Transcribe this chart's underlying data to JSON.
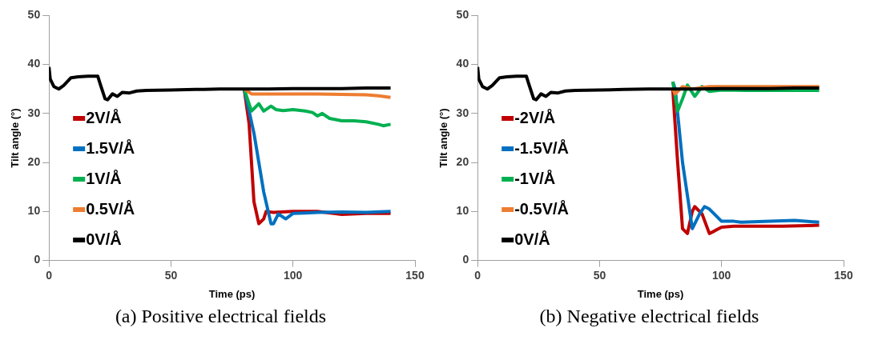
{
  "chart_data": [
    {
      "type": "line",
      "xlabel": "Time (ps)",
      "ylabel": "Tilt angle (°)",
      "annotations": [
        "(a) Positive electrical fields"
      ],
      "xlim": [
        0,
        150
      ],
      "xticks": [
        0,
        50,
        100,
        150
      ],
      "ylim": [
        0,
        50
      ],
      "yticks": [
        0,
        10,
        20,
        30,
        40,
        50
      ],
      "grid": false,
      "legend": "left",
      "series": [
        {
          "name": "2V/Å",
          "color": "#c00000",
          "x": [
            80,
            82,
            84,
            86,
            88,
            89,
            92,
            95,
            100,
            110,
            120,
            130,
            140
          ],
          "values": [
            35,
            28,
            12,
            7.5,
            8.5,
            10,
            9.8,
            9.9,
            10,
            10,
            9.4,
            9.6,
            9.6
          ]
        },
        {
          "name": "1.5V/Å",
          "color": "#0070c0",
          "x": [
            80,
            84,
            88,
            91,
            92,
            94,
            97,
            100,
            105,
            110,
            120,
            130,
            140
          ],
          "values": [
            35,
            26,
            14,
            7.5,
            7.5,
            9.5,
            8.5,
            9.6,
            9.7,
            9.8,
            9.9,
            9.8,
            10
          ]
        },
        {
          "name": "1V/Å",
          "color": "#00b050",
          "x": [
            80,
            83,
            86,
            88,
            91,
            93,
            96,
            100,
            105,
            108,
            110,
            112,
            115,
            120,
            125,
            130,
            135,
            137,
            140
          ],
          "values": [
            35,
            30.5,
            32,
            30.5,
            31.5,
            30.8,
            30.6,
            30.8,
            30.5,
            30.2,
            29.5,
            30,
            29,
            28.5,
            28.5,
            28.3,
            27.8,
            27.5,
            27.8
          ]
        },
        {
          "name": "0.5V/Å",
          "color": "#ed7d31",
          "x": [
            80,
            83,
            90,
            100,
            110,
            120,
            130,
            135,
            140
          ],
          "values": [
            35,
            34,
            34,
            34,
            34,
            33.9,
            33.8,
            33.6,
            33.3
          ]
        },
        {
          "name": "0V/Å",
          "color": "#000000",
          "x": [
            0,
            0.5,
            2,
            4,
            6,
            9,
            12,
            16,
            20,
            21,
            23,
            24,
            26,
            28,
            30,
            33,
            36,
            40,
            50,
            60,
            70,
            80,
            90,
            100,
            110,
            120,
            130,
            140
          ],
          "values": [
            39.5,
            37,
            35.5,
            35,
            35.7,
            37.3,
            37.5,
            37.6,
            37.6,
            36,
            33,
            32.8,
            34,
            33.5,
            34.3,
            34.2,
            34.6,
            34.7,
            34.8,
            34.9,
            35,
            35,
            35,
            35.1,
            35.1,
            35.1,
            35.2,
            35.2
          ]
        }
      ]
    },
    {
      "type": "line",
      "xlabel": "Time (ps)",
      "ylabel": "Tilt angle (°)",
      "annotations": [
        "(b) Negative electrical fields"
      ],
      "xlim": [
        0,
        150
      ],
      "xticks": [
        0,
        50,
        100,
        150
      ],
      "ylim": [
        0,
        50
      ],
      "yticks": [
        0,
        10,
        20,
        30,
        40,
        50
      ],
      "grid": false,
      "legend": "left",
      "series": [
        {
          "name": "-2V/Å",
          "color": "#c00000",
          "x": [
            80,
            82,
            84,
            86,
            88,
            89,
            92,
            95,
            97,
            100,
            105,
            115,
            125,
            140
          ],
          "values": [
            35,
            20,
            6.5,
            5.5,
            10,
            11,
            9.5,
            5.5,
            6,
            6.8,
            7,
            7,
            7,
            7.2
          ]
        },
        {
          "name": "-1.5V/Å",
          "color": "#0070c0",
          "x": [
            80,
            81,
            84,
            88,
            91,
            93,
            95,
            97,
            100,
            105,
            108,
            120,
            130,
            140
          ],
          "values": [
            36.5,
            35,
            20,
            6.5,
            9.5,
            11,
            10.5,
            9.5,
            8,
            8,
            7.8,
            8,
            8.2,
            7.8
          ]
        },
        {
          "name": "-1V/Å",
          "color": "#00b050",
          "x": [
            80,
            82,
            84,
            86,
            89,
            92,
            95,
            100,
            110,
            120,
            130,
            140
          ],
          "values": [
            36.5,
            30.5,
            33,
            35.8,
            33.5,
            35.5,
            34.5,
            34.8,
            34.7,
            34.7,
            34.7,
            34.7
          ]
        },
        {
          "name": "-0.5V/Å",
          "color": "#ed7d31",
          "x": [
            80,
            81,
            84,
            88,
            95,
            110,
            125,
            140
          ],
          "values": [
            35,
            34,
            35.5,
            35,
            35.5,
            35.5,
            35.5,
            35.5
          ]
        },
        {
          "name": "0V/Å",
          "color": "#000000",
          "x": [
            0,
            0.5,
            2,
            4,
            6,
            9,
            12,
            16,
            20,
            21,
            23,
            24,
            26,
            28,
            30,
            33,
            36,
            40,
            50,
            60,
            70,
            80,
            90,
            100,
            110,
            120,
            130,
            140
          ],
          "values": [
            39.5,
            37,
            35.5,
            35,
            35.7,
            37.3,
            37.5,
            37.6,
            37.6,
            36,
            33,
            32.8,
            34,
            33.5,
            34.3,
            34.2,
            34.6,
            34.7,
            34.8,
            34.9,
            35,
            35,
            35,
            35.1,
            35.1,
            35.1,
            35.2,
            35.2
          ]
        }
      ]
    }
  ]
}
